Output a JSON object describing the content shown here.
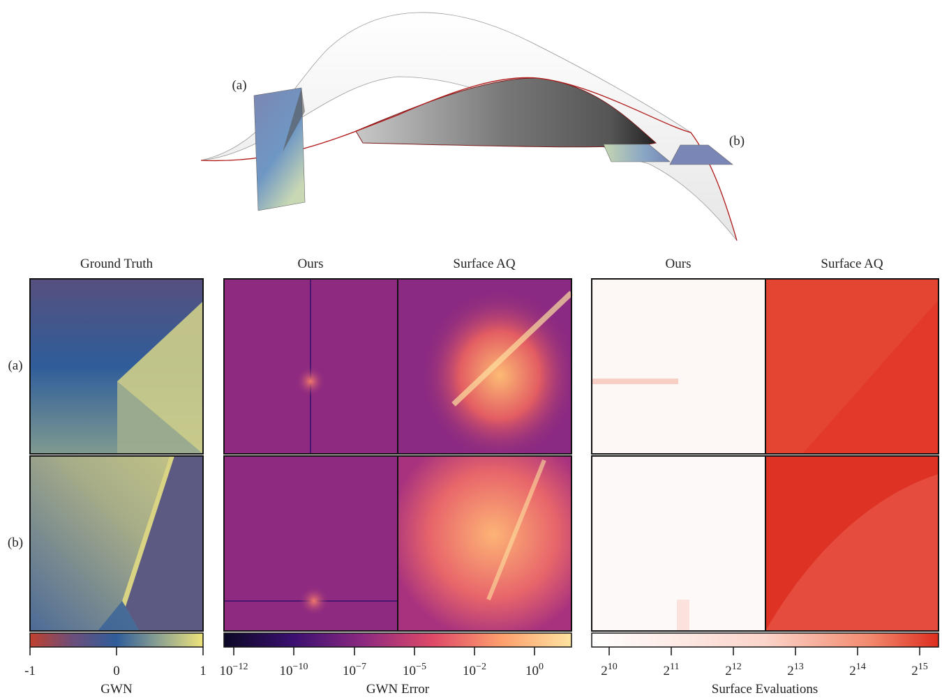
{
  "figure": {
    "surface_labels": [
      "(a)",
      "(b)"
    ],
    "row_labels": [
      "(a)",
      "(b)"
    ],
    "panels": [
      {
        "headers": [
          "Ground Truth"
        ],
        "colorbar": {
          "ticks": [
            -1,
            0,
            1
          ],
          "label": "GWN"
        }
      },
      {
        "headers": [
          "Ours",
          "Surface AQ"
        ],
        "colorbar": {
          "ticks": [
            {
              "base": "10",
              "exp": "−12"
            },
            {
              "base": "10",
              "exp": "−10"
            },
            {
              "base": "10",
              "exp": "−7"
            },
            {
              "base": "10",
              "exp": "−5"
            },
            {
              "base": "10",
              "exp": "−2"
            },
            {
              "base": "10",
              "exp": "0"
            }
          ],
          "label": "GWN Error"
        }
      },
      {
        "headers": [
          "Ours",
          "Surface AQ"
        ],
        "colorbar": {
          "ticks": [
            {
              "base": "2",
              "exp": "10"
            },
            {
              "base": "2",
              "exp": "11"
            },
            {
              "base": "2",
              "exp": "12"
            },
            {
              "base": "2",
              "exp": "13"
            },
            {
              "base": "2",
              "exp": "14"
            },
            {
              "base": "2",
              "exp": "15"
            }
          ],
          "label": "Surface Evaluations"
        }
      }
    ]
  }
}
